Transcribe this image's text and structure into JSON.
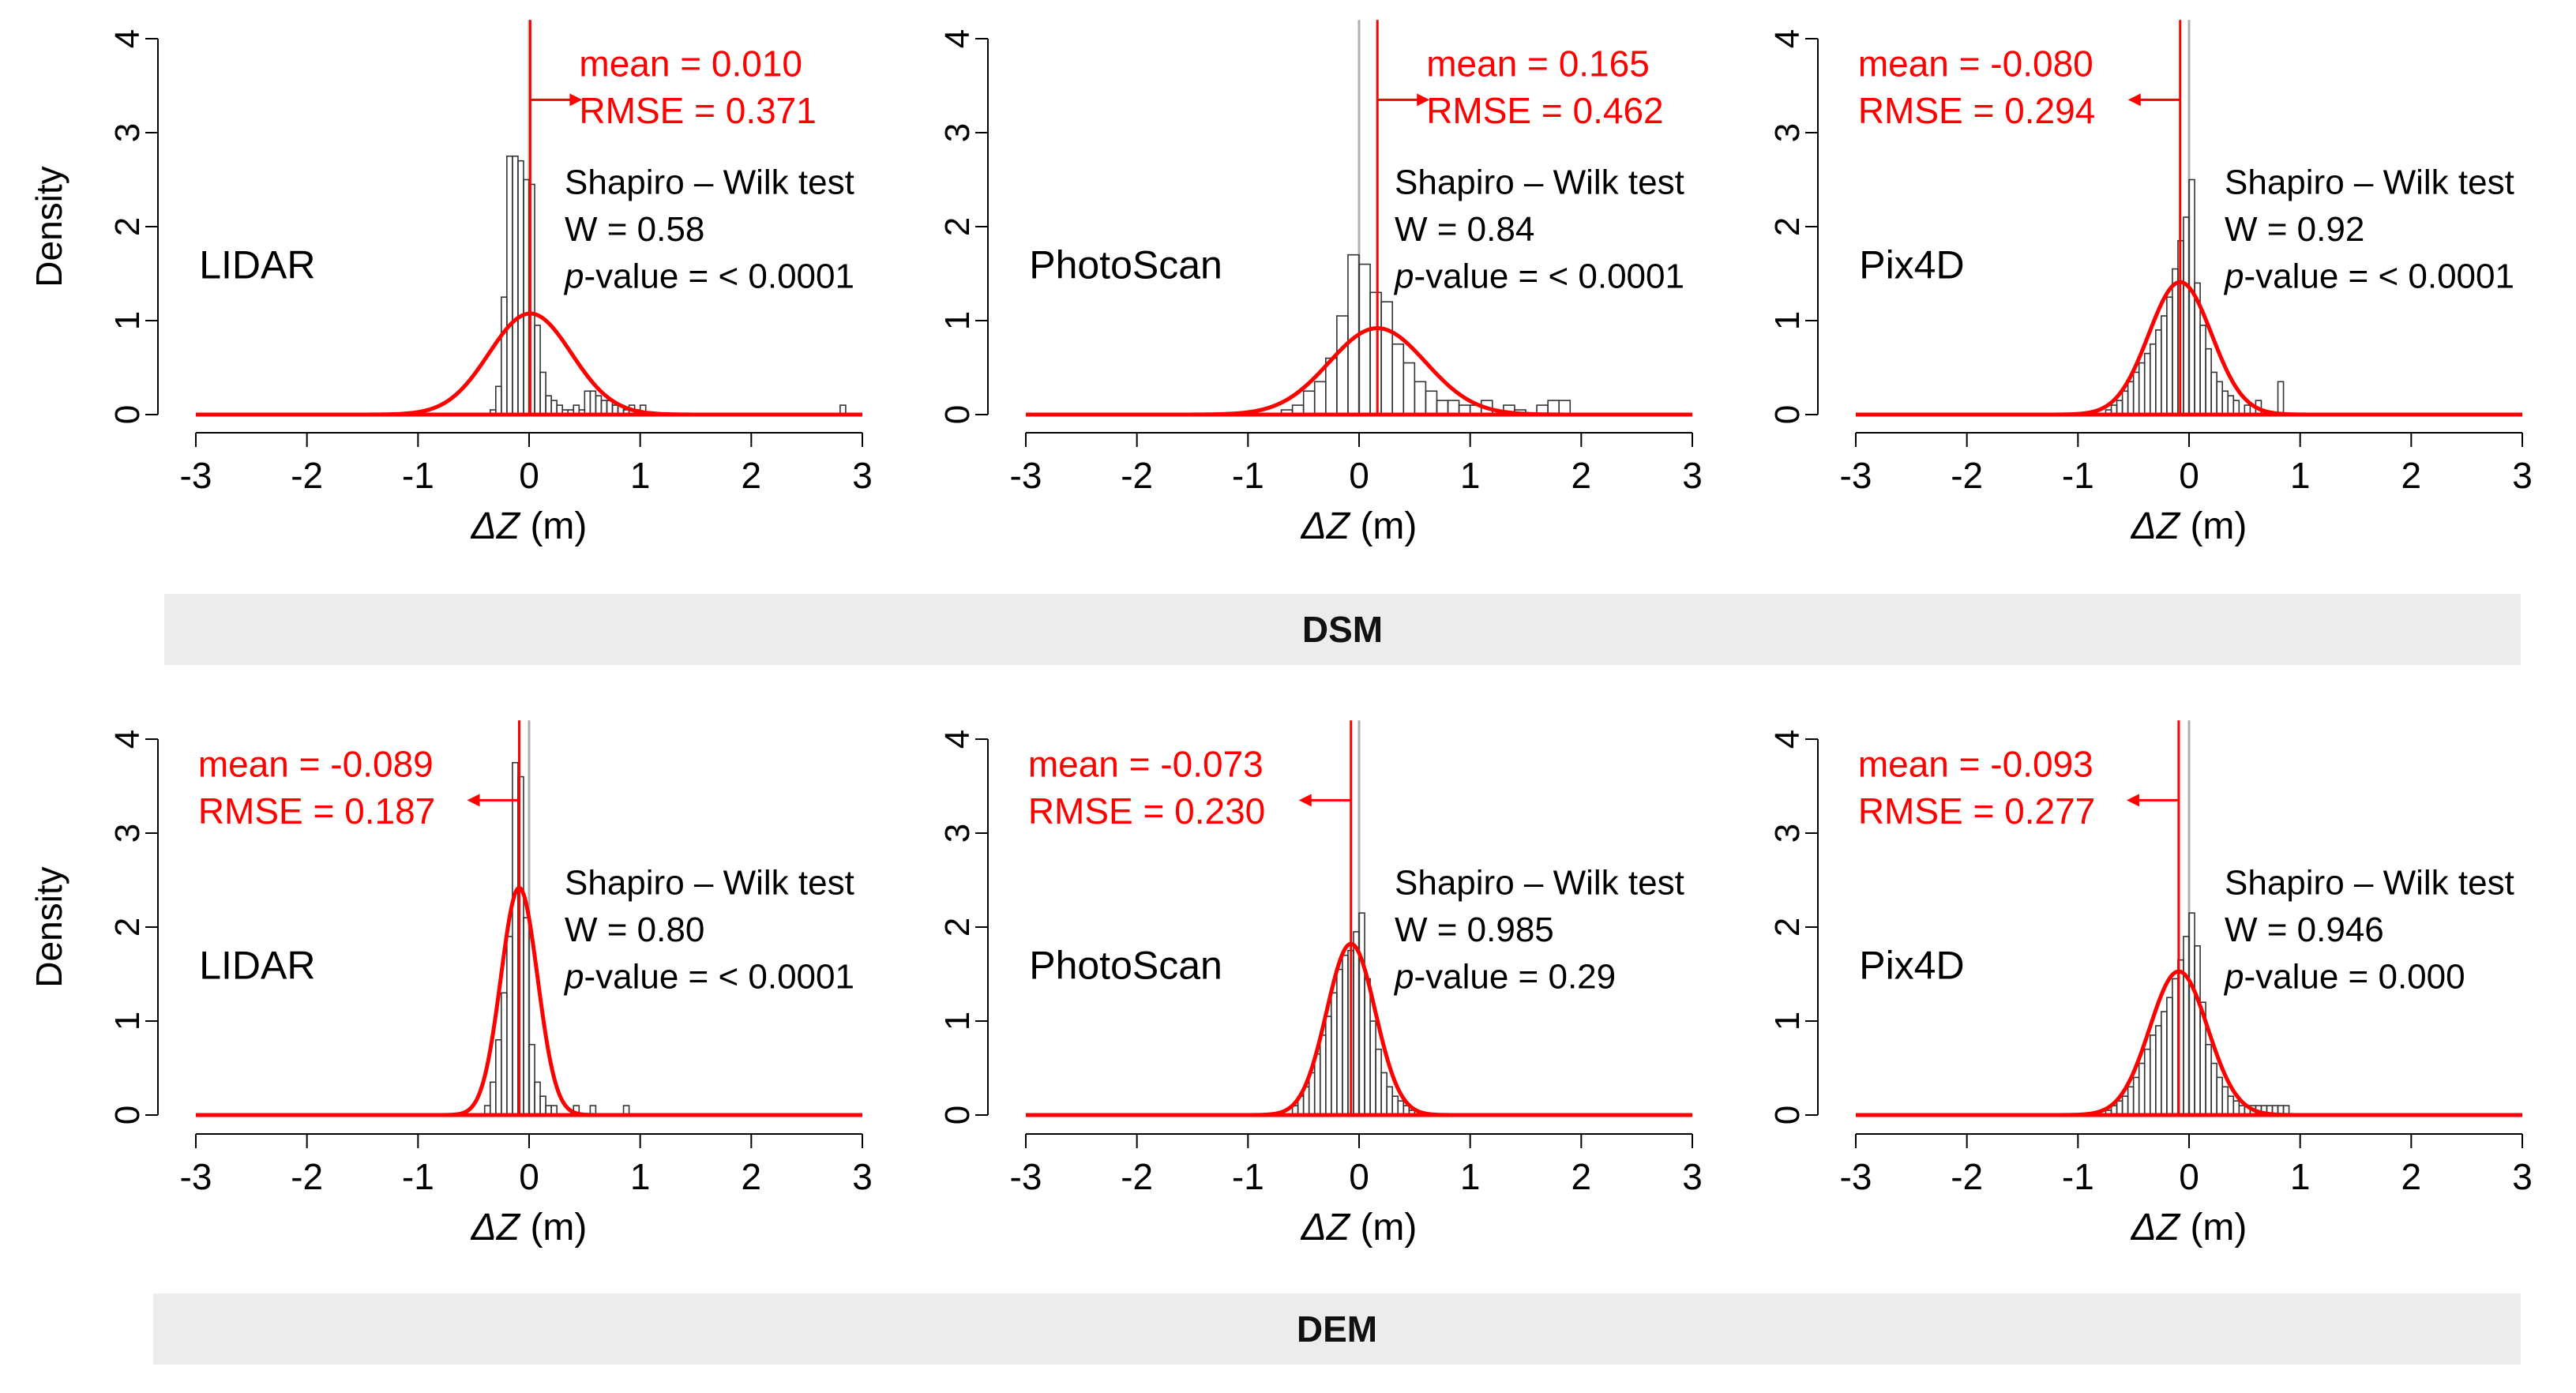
{
  "figure": {
    "y_axis_label": "Density",
    "x_axis_label_symbol": "ΔZ",
    "x_axis_label_unit": " (m)",
    "test_name": "Shapiro – Wilk test",
    "pvalue_prefix": "p",
    "pvalue_suffix": "-value  = ",
    "colors": {
      "normal_curve": "#ff0000",
      "mean_line": "#ff0000",
      "zero_line": "#b0b0b0",
      "bars": "#333333",
      "band": "#ececec"
    }
  },
  "rows": [
    {
      "band_label": "DSM"
    },
    {
      "band_label": "DEM"
    }
  ],
  "chart_data": [
    {
      "type": "bar",
      "subtype": "histogram_with_normal_curve",
      "row": "DSM",
      "panel": "LIDAR",
      "label": "LIDAR",
      "xlim": [
        -3,
        3
      ],
      "ylim": [
        0,
        4
      ],
      "x_ticks": [
        "-3",
        "-2",
        "-1",
        "0",
        "1",
        "2",
        "3"
      ],
      "y_ticks": [
        "0",
        "1",
        "2",
        "3",
        "4"
      ],
      "mean": 0.01,
      "sd": 0.371,
      "arrow": "right",
      "mean_text": "mean = 0.010",
      "rmse_text": "RMSE = 0.371",
      "w_text": "W = 0.58",
      "p_value": "< 0.0001",
      "bin_width": 0.05,
      "bins": [
        [
          -0.35,
          0.05
        ],
        [
          -0.3,
          0.3
        ],
        [
          -0.25,
          1.25
        ],
        [
          -0.2,
          2.75
        ],
        [
          -0.15,
          2.75
        ],
        [
          -0.1,
          2.7
        ],
        [
          -0.05,
          2.5
        ],
        [
          0.0,
          2.45
        ],
        [
          0.05,
          0.95
        ],
        [
          0.1,
          0.45
        ],
        [
          0.15,
          0.2
        ],
        [
          0.2,
          0.15
        ],
        [
          0.25,
          0.1
        ],
        [
          0.3,
          0.05
        ],
        [
          0.35,
          0.05
        ],
        [
          0.4,
          0.1
        ],
        [
          0.45,
          0.05
        ],
        [
          0.5,
          0.25
        ],
        [
          0.55,
          0.25
        ],
        [
          0.6,
          0.2
        ],
        [
          0.65,
          0.15
        ],
        [
          0.7,
          0.15
        ],
        [
          0.75,
          0.1
        ],
        [
          0.8,
          0.1
        ],
        [
          0.85,
          0.05
        ],
        [
          0.9,
          0.1
        ],
        [
          0.95,
          0.05
        ],
        [
          1.0,
          0.1
        ],
        [
          2.8,
          0.1
        ]
      ]
    },
    {
      "type": "bar",
      "subtype": "histogram_with_normal_curve",
      "row": "DSM",
      "panel": "PhotoScan",
      "label": "PhotoScan",
      "xlim": [
        -3,
        3
      ],
      "ylim": [
        0,
        4
      ],
      "x_ticks": [
        "-3",
        "-2",
        "-1",
        "0",
        "1",
        "2",
        "3"
      ],
      "y_ticks": [
        "0",
        "1",
        "2",
        "3",
        "4"
      ],
      "mean": 0.165,
      "sd": 0.434,
      "arrow": "right",
      "mean_text": "mean = 0.165",
      "rmse_text": "RMSE = 0.462",
      "w_text": "W = 0.84",
      "p_value": "< 0.0001",
      "bin_width": 0.1,
      "bins": [
        [
          -0.7,
          0.05
        ],
        [
          -0.6,
          0.1
        ],
        [
          -0.5,
          0.25
        ],
        [
          -0.4,
          0.35
        ],
        [
          -0.3,
          0.6
        ],
        [
          -0.2,
          1.05
        ],
        [
          -0.1,
          1.7
        ],
        [
          0.0,
          1.6
        ],
        [
          0.1,
          1.3
        ],
        [
          0.2,
          1.2
        ],
        [
          0.3,
          0.75
        ],
        [
          0.4,
          0.55
        ],
        [
          0.5,
          0.35
        ],
        [
          0.6,
          0.25
        ],
        [
          0.7,
          0.15
        ],
        [
          0.8,
          0.15
        ],
        [
          0.9,
          0.1
        ],
        [
          1.0,
          0.1
        ],
        [
          1.1,
          0.15
        ],
        [
          1.3,
          0.1
        ],
        [
          1.4,
          0.05
        ],
        [
          1.6,
          0.1
        ],
        [
          1.7,
          0.15
        ],
        [
          1.8,
          0.15
        ]
      ]
    },
    {
      "type": "bar",
      "subtype": "histogram_with_normal_curve",
      "row": "DSM",
      "panel": "Pix4D",
      "label": "Pix4D",
      "xlim": [
        -3,
        3
      ],
      "ylim": [
        0,
        4
      ],
      "x_ticks": [
        "-3",
        "-2",
        "-1",
        "0",
        "1",
        "2",
        "3"
      ],
      "y_ticks": [
        "0",
        "1",
        "2",
        "3",
        "4"
      ],
      "mean": -0.08,
      "sd": 0.283,
      "arrow": "left",
      "mean_text": "mean = -0.080",
      "rmse_text": "RMSE = 0.294",
      "w_text": "W = 0.92",
      "p_value": "< 0.0001",
      "bin_width": 0.05,
      "bins": [
        [
          -0.75,
          0.05
        ],
        [
          -0.7,
          0.1
        ],
        [
          -0.65,
          0.15
        ],
        [
          -0.6,
          0.25
        ],
        [
          -0.55,
          0.35
        ],
        [
          -0.5,
          0.45
        ],
        [
          -0.45,
          0.55
        ],
        [
          -0.4,
          0.65
        ],
        [
          -0.35,
          0.75
        ],
        [
          -0.3,
          0.9
        ],
        [
          -0.25,
          1.05
        ],
        [
          -0.2,
          1.25
        ],
        [
          -0.15,
          1.55
        ],
        [
          -0.1,
          1.85
        ],
        [
          -0.05,
          2.1
        ],
        [
          0.0,
          2.5
        ],
        [
          0.05,
          1.4
        ],
        [
          0.1,
          0.95
        ],
        [
          0.15,
          0.7
        ],
        [
          0.2,
          0.45
        ],
        [
          0.25,
          0.35
        ],
        [
          0.3,
          0.25
        ],
        [
          0.35,
          0.2
        ],
        [
          0.4,
          0.15
        ],
        [
          0.5,
          0.1
        ],
        [
          0.6,
          0.15
        ],
        [
          0.8,
          0.35
        ]
      ]
    },
    {
      "type": "bar",
      "subtype": "histogram_with_normal_curve",
      "row": "DEM",
      "panel": "LIDAR",
      "label": "LIDAR",
      "xlim": [
        -3,
        3
      ],
      "ylim": [
        0,
        4
      ],
      "x_ticks": [
        "-3",
        "-2",
        "-1",
        "0",
        "1",
        "2",
        "3"
      ],
      "y_ticks": [
        "0",
        "1",
        "2",
        "3",
        "4"
      ],
      "mean": -0.089,
      "sd": 0.165,
      "arrow": "left",
      "mean_text": "mean = -0.089",
      "rmse_text": "RMSE = 0.187",
      "w_text": "W = 0.80",
      "p_value": "< 0.0001",
      "bin_width": 0.05,
      "bins": [
        [
          -0.4,
          0.1
        ],
        [
          -0.35,
          0.35
        ],
        [
          -0.3,
          0.8
        ],
        [
          -0.25,
          1.3
        ],
        [
          -0.2,
          1.9
        ],
        [
          -0.15,
          3.75
        ],
        [
          -0.1,
          3.6
        ],
        [
          -0.05,
          2.1
        ],
        [
          0.0,
          0.75
        ],
        [
          0.05,
          0.35
        ],
        [
          0.1,
          0.2
        ],
        [
          0.15,
          0.1
        ],
        [
          0.2,
          0.1
        ],
        [
          0.4,
          0.1
        ],
        [
          0.55,
          0.1
        ],
        [
          0.85,
          0.1
        ]
      ]
    },
    {
      "type": "bar",
      "subtype": "histogram_with_normal_curve",
      "row": "DEM",
      "panel": "PhotoScan",
      "label": "PhotoScan",
      "xlim": [
        -3,
        3
      ],
      "ylim": [
        0,
        4
      ],
      "x_ticks": [
        "-3",
        "-2",
        "-1",
        "0",
        "1",
        "2",
        "3"
      ],
      "y_ticks": [
        "0",
        "1",
        "2",
        "3",
        "4"
      ],
      "mean": -0.073,
      "sd": 0.219,
      "arrow": "left",
      "mean_text": "mean = -0.073",
      "rmse_text": "RMSE = 0.230",
      "w_text": "W = 0.985",
      "p_value": "0.29",
      "bin_width": 0.05,
      "bins": [
        [
          -0.6,
          0.1
        ],
        [
          -0.55,
          0.2
        ],
        [
          -0.5,
          0.3
        ],
        [
          -0.45,
          0.45
        ],
        [
          -0.4,
          0.65
        ],
        [
          -0.35,
          0.85
        ],
        [
          -0.3,
          1.05
        ],
        [
          -0.25,
          1.3
        ],
        [
          -0.2,
          1.55
        ],
        [
          -0.15,
          1.7
        ],
        [
          -0.1,
          1.75
        ],
        [
          -0.05,
          1.95
        ],
        [
          0.0,
          2.15
        ],
        [
          0.05,
          1.45
        ],
        [
          0.1,
          1.0
        ],
        [
          0.15,
          0.7
        ],
        [
          0.2,
          0.45
        ],
        [
          0.25,
          0.3
        ],
        [
          0.3,
          0.2
        ],
        [
          0.35,
          0.15
        ],
        [
          0.4,
          0.1
        ],
        [
          0.45,
          0.05
        ]
      ]
    },
    {
      "type": "bar",
      "subtype": "histogram_with_normal_curve",
      "row": "DEM",
      "panel": "Pix4D",
      "label": "Pix4D",
      "xlim": [
        -3,
        3
      ],
      "ylim": [
        0,
        4
      ],
      "x_ticks": [
        "-3",
        "-2",
        "-1",
        "0",
        "1",
        "2",
        "3"
      ],
      "y_ticks": [
        "0",
        "1",
        "2",
        "3",
        "4"
      ],
      "mean": -0.093,
      "sd": 0.261,
      "arrow": "left",
      "mean_text": "mean = -0.093",
      "rmse_text": "RMSE = 0.277",
      "w_text": "W = 0.946",
      "p_value": "0.000",
      "bin_width": 0.05,
      "bins": [
        [
          -0.75,
          0.05
        ],
        [
          -0.7,
          0.1
        ],
        [
          -0.65,
          0.15
        ],
        [
          -0.6,
          0.2
        ],
        [
          -0.55,
          0.3
        ],
        [
          -0.5,
          0.4
        ],
        [
          -0.45,
          0.55
        ],
        [
          -0.4,
          0.7
        ],
        [
          -0.35,
          0.85
        ],
        [
          -0.3,
          0.95
        ],
        [
          -0.25,
          1.1
        ],
        [
          -0.2,
          1.25
        ],
        [
          -0.15,
          1.45
        ],
        [
          -0.1,
          1.65
        ],
        [
          -0.05,
          1.9
        ],
        [
          0.0,
          2.15
        ],
        [
          0.05,
          1.8
        ],
        [
          0.1,
          1.2
        ],
        [
          0.15,
          0.75
        ],
        [
          0.2,
          0.55
        ],
        [
          0.25,
          0.4
        ],
        [
          0.3,
          0.3
        ],
        [
          0.35,
          0.2
        ],
        [
          0.4,
          0.15
        ],
        [
          0.45,
          0.1
        ],
        [
          0.5,
          0.1
        ],
        [
          0.55,
          0.1
        ],
        [
          0.6,
          0.1
        ],
        [
          0.65,
          0.1
        ],
        [
          0.7,
          0.1
        ],
        [
          0.75,
          0.1
        ],
        [
          0.8,
          0.1
        ],
        [
          0.85,
          0.1
        ]
      ]
    }
  ]
}
